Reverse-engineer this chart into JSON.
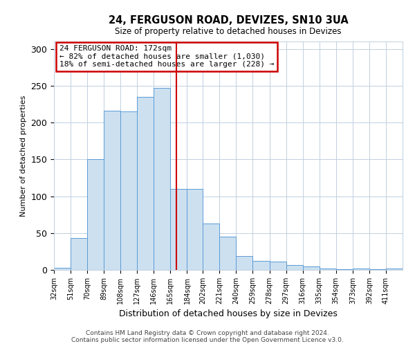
{
  "title": "24, FERGUSON ROAD, DEVIZES, SN10 3UA",
  "subtitle": "Size of property relative to detached houses in Devizes",
  "xlabel": "Distribution of detached houses by size in Devizes",
  "ylabel": "Number of detached properties",
  "bin_labels": [
    "32sqm",
    "51sqm",
    "70sqm",
    "89sqm",
    "108sqm",
    "127sqm",
    "146sqm",
    "165sqm",
    "184sqm",
    "202sqm",
    "221sqm",
    "240sqm",
    "259sqm",
    "278sqm",
    "297sqm",
    "316sqm",
    "335sqm",
    "354sqm",
    "373sqm",
    "392sqm",
    "411sqm"
  ],
  "bin_edges": [
    32,
    51,
    70,
    89,
    108,
    127,
    146,
    165,
    184,
    202,
    221,
    240,
    259,
    278,
    297,
    316,
    335,
    354,
    373,
    392,
    411
  ],
  "bar_heights": [
    3,
    43,
    150,
    216,
    215,
    235,
    247,
    110,
    110,
    63,
    45,
    19,
    12,
    11,
    7,
    5,
    2,
    1,
    2,
    1,
    2
  ],
  "bar_color": "#cce0f0",
  "bar_edge_color": "#5b9bd5",
  "vline_x": 172,
  "vline_color": "#cc0000",
  "ylim": [
    0,
    310
  ],
  "yticks": [
    0,
    50,
    100,
    150,
    200,
    250,
    300
  ],
  "annotation_line1": "24 FERGUSON ROAD: 172sqm",
  "annotation_line2": "← 82% of detached houses are smaller (1,030)",
  "annotation_line3": "18% of semi-detached houses are larger (228) →",
  "annotation_box_color": "#cc0000",
  "footer_line1": "Contains HM Land Registry data © Crown copyright and database right 2024.",
  "footer_line2": "Contains public sector information licensed under the Open Government Licence v3.0.",
  "background_color": "#ffffff",
  "grid_color": "#c0d0e0"
}
